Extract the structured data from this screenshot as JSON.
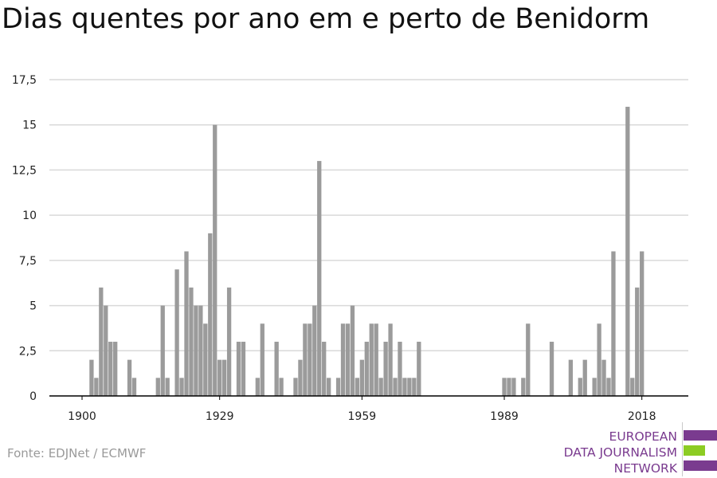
{
  "title": "Dias quentes por ano em e perto de Benidorm",
  "source": "Fonte: EDJNet / ECMWF",
  "logo": {
    "lines": [
      "EUROPEAN",
      "DATA JOURNALISM",
      "NETWORK"
    ],
    "colors": [
      "#7a3b8f",
      "#8ccc23",
      "#7a3b8f"
    ]
  },
  "colors": {
    "bar": "#9b9b9b",
    "grid": "#d9d9d9",
    "axis": "#000000",
    "text": "#222222"
  },
  "chart_data": {
    "type": "bar",
    "title": "Dias quentes por ano em e perto de Benidorm",
    "xlabel": "",
    "ylabel": "",
    "xlim": [
      1900,
      2021
    ],
    "ylim": [
      0,
      17.5
    ],
    "yticks": [
      0,
      2.5,
      5,
      7.5,
      10,
      12.5,
      15,
      17.5
    ],
    "ytick_labels": [
      "0",
      "2,5",
      "5",
      "7,5",
      "10",
      "12,5",
      "15",
      "17,5"
    ],
    "xticks": [
      1900,
      1929,
      1959,
      1989,
      2018
    ],
    "xtick_labels": [
      "1900",
      "1929",
      "1959",
      "1989",
      "2018"
    ],
    "grid": true,
    "x": [
      1900,
      1901,
      1902,
      1903,
      1904,
      1905,
      1906,
      1907,
      1908,
      1909,
      1910,
      1911,
      1912,
      1913,
      1914,
      1915,
      1916,
      1917,
      1918,
      1919,
      1920,
      1921,
      1922,
      1923,
      1924,
      1925,
      1926,
      1927,
      1928,
      1929,
      1930,
      1931,
      1932,
      1933,
      1934,
      1935,
      1936,
      1937,
      1938,
      1939,
      1940,
      1941,
      1942,
      1943,
      1944,
      1945,
      1946,
      1947,
      1948,
      1949,
      1950,
      1951,
      1952,
      1953,
      1954,
      1955,
      1956,
      1957,
      1958,
      1959,
      1960,
      1961,
      1962,
      1963,
      1964,
      1965,
      1966,
      1967,
      1968,
      1969,
      1970,
      1971,
      1972,
      1973,
      1974,
      1975,
      1976,
      1977,
      1978,
      1979,
      1980,
      1981,
      1982,
      1983,
      1984,
      1985,
      1986,
      1987,
      1988,
      1989,
      1990,
      1991,
      1992,
      1993,
      1994,
      1995,
      1996,
      1997,
      1998,
      1999,
      2000,
      2001,
      2002,
      2003,
      2004,
      2005,
      2006,
      2007,
      2008,
      2009,
      2010,
      2011,
      2012,
      2013,
      2014,
      2015,
      2016,
      2017,
      2018,
      2019,
      2020
    ],
    "values": [
      0,
      0,
      2,
      1,
      6,
      5,
      3,
      3,
      0,
      0,
      2,
      1,
      0,
      0,
      0,
      0,
      1,
      5,
      1,
      0,
      7,
      1,
      8,
      6,
      5,
      5,
      4,
      9,
      15,
      2,
      2,
      6,
      0,
      3,
      3,
      0,
      0,
      1,
      4,
      0,
      0,
      3,
      1,
      0,
      0,
      1,
      2,
      4,
      4,
      5,
      13,
      3,
      1,
      0,
      1,
      4,
      4,
      5,
      1,
      2,
      3,
      4,
      4,
      1,
      3,
      4,
      1,
      3,
      1,
      1,
      1,
      3,
      0,
      0,
      0,
      0,
      0,
      0,
      0,
      0,
      0,
      0,
      0,
      0,
      0,
      0,
      0,
      0,
      0,
      1,
      1,
      1,
      0,
      1,
      4,
      0,
      0,
      0,
      0,
      3,
      0,
      0,
      0,
      2,
      0,
      1,
      2,
      0,
      1,
      4,
      2,
      1,
      8,
      0,
      0,
      16,
      1,
      6,
      8,
      0,
      0
    ]
  }
}
